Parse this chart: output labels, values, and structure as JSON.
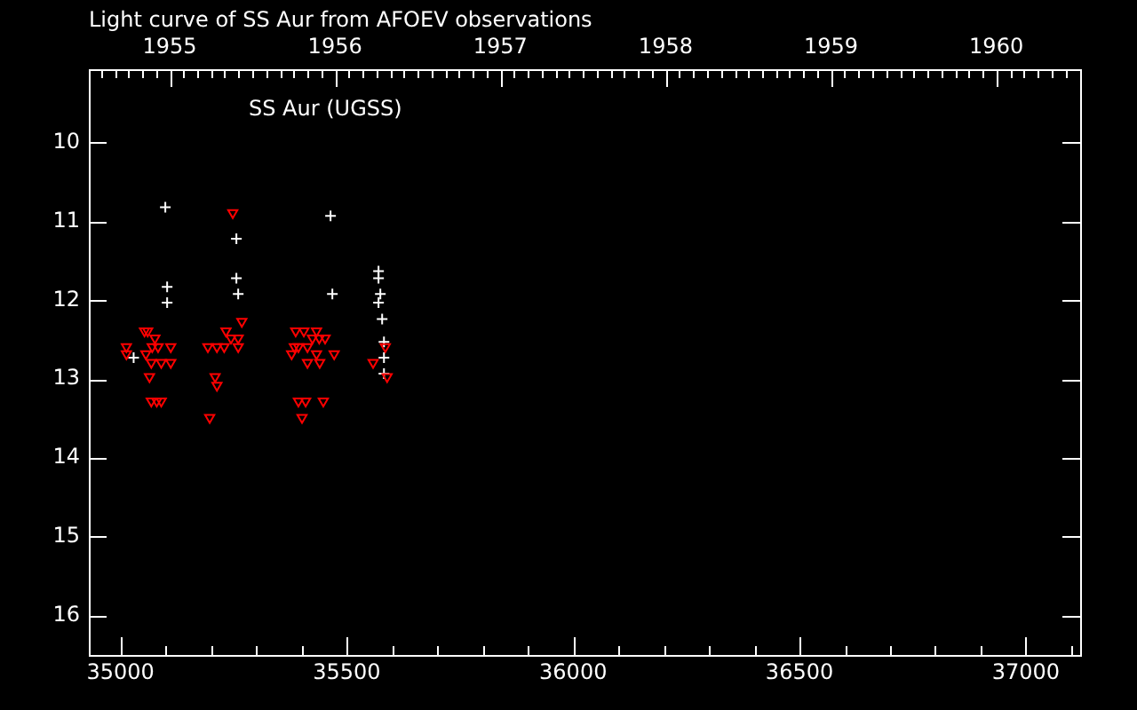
{
  "chart_data": {
    "type": "scatter",
    "title": "Light curve of SS Aur from AFOEV observations",
    "annotations": [
      "SS Aur (UGSS)"
    ],
    "xlim": [
      34930,
      37120
    ],
    "xticks": [
      35000,
      {
        "value": 35100,
        "label": null
      },
      {
        "value": 35200,
        "label": null
      },
      {
        "value": 35300,
        "label": null
      },
      {
        "value": 35400,
        "label": null
      },
      35500,
      {
        "value": 35600,
        "label": null
      },
      {
        "value": 35700,
        "label": null
      },
      {
        "value": 35800,
        "label": null
      },
      {
        "value": 35900,
        "label": null
      },
      36000,
      {
        "value": 36100,
        "label": null
      },
      {
        "value": 36200,
        "label": null
      },
      {
        "value": 36300,
        "label": null
      },
      {
        "value": 36400,
        "label": null
      },
      36500,
      {
        "value": 36600,
        "label": null
      },
      {
        "value": 36700,
        "label": null
      },
      {
        "value": 36800,
        "label": null
      },
      {
        "value": 36900,
        "label": null
      },
      37000,
      {
        "value": 37100,
        "label": null
      }
    ],
    "x2lim": [
      1954.511,
      1960.507
    ],
    "x2ticks": [
      {
        "value": 1954.583,
        "label": null
      },
      {
        "value": 1954.667,
        "label": null
      },
      {
        "value": 1954.75,
        "label": null
      },
      {
        "value": 1954.833,
        "label": null
      },
      {
        "value": 1954.917,
        "label": null
      },
      1955,
      {
        "value": 1955.083,
        "label": null
      },
      {
        "value": 1955.167,
        "label": null
      },
      {
        "value": 1955.25,
        "label": null
      },
      {
        "value": 1955.333,
        "label": null
      },
      {
        "value": 1955.417,
        "label": null
      },
      {
        "value": 1955.5,
        "label": null
      },
      {
        "value": 1955.583,
        "label": null
      },
      {
        "value": 1955.667,
        "label": null
      },
      {
        "value": 1955.75,
        "label": null
      },
      {
        "value": 1955.833,
        "label": null
      },
      {
        "value": 1955.917,
        "label": null
      },
      1956,
      {
        "value": 1956.083,
        "label": null
      },
      {
        "value": 1956.167,
        "label": null
      },
      {
        "value": 1956.25,
        "label": null
      },
      {
        "value": 1956.333,
        "label": null
      },
      {
        "value": 1956.417,
        "label": null
      },
      {
        "value": 1956.5,
        "label": null
      },
      {
        "value": 1956.583,
        "label": null
      },
      {
        "value": 1956.667,
        "label": null
      },
      {
        "value": 1956.75,
        "label": null
      },
      {
        "value": 1956.833,
        "label": null
      },
      {
        "value": 1956.917,
        "label": null
      },
      1957,
      {
        "value": 1957.083,
        "label": null
      },
      {
        "value": 1957.167,
        "label": null
      },
      {
        "value": 1957.25,
        "label": null
      },
      {
        "value": 1957.333,
        "label": null
      },
      {
        "value": 1957.417,
        "label": null
      },
      {
        "value": 1957.5,
        "label": null
      },
      {
        "value": 1957.583,
        "label": null
      },
      {
        "value": 1957.667,
        "label": null
      },
      {
        "value": 1957.75,
        "label": null
      },
      {
        "value": 1957.833,
        "label": null
      },
      {
        "value": 1957.917,
        "label": null
      },
      1958,
      {
        "value": 1958.083,
        "label": null
      },
      {
        "value": 1958.167,
        "label": null
      },
      {
        "value": 1958.25,
        "label": null
      },
      {
        "value": 1958.333,
        "label": null
      },
      {
        "value": 1958.417,
        "label": null
      },
      {
        "value": 1958.5,
        "label": null
      },
      {
        "value": 1958.583,
        "label": null
      },
      {
        "value": 1958.667,
        "label": null
      },
      {
        "value": 1958.75,
        "label": null
      },
      {
        "value": 1958.833,
        "label": null
      },
      {
        "value": 1958.917,
        "label": null
      },
      1959,
      {
        "value": 1959.083,
        "label": null
      },
      {
        "value": 1959.167,
        "label": null
      },
      {
        "value": 1959.25,
        "label": null
      },
      {
        "value": 1959.333,
        "label": null
      },
      {
        "value": 1959.417,
        "label": null
      },
      {
        "value": 1959.5,
        "label": null
      },
      {
        "value": 1959.583,
        "label": null
      },
      {
        "value": 1959.667,
        "label": null
      },
      {
        "value": 1959.75,
        "label": null
      },
      {
        "value": 1959.833,
        "label": null
      },
      {
        "value": 1959.917,
        "label": null
      },
      1960,
      {
        "value": 1960.083,
        "label": null
      },
      {
        "value": 1960.167,
        "label": null
      },
      {
        "value": 1960.25,
        "label": null
      },
      {
        "value": 1960.333,
        "label": null
      },
      {
        "value": 1960.417,
        "label": null
      }
    ],
    "ylim": [
      16.5,
      9.07
    ],
    "yticks": [
      10,
      11,
      12,
      13,
      14,
      15,
      16
    ],
    "series": [
      {
        "color": "#ff0000",
        "marker": "triangle",
        "x": [
          35053,
          35060,
          35076,
          35013,
          35070,
          35083,
          35111,
          35013,
          35056,
          35068,
          35090,
          35111,
          35064,
          35068,
          35080,
          35090,
          35248,
          35268,
          35233,
          35244,
          35260,
          35193,
          35213,
          35229,
          35260,
          35209,
          35213,
          35197,
          35387,
          35405,
          35433,
          35424,
          35439,
          35452,
          35384,
          35393,
          35413,
          35378,
          35433,
          35472,
          35413,
          35440,
          35393,
          35409,
          35448,
          35401,
          35558,
          35585,
          35589
        ],
        "values": [
          12.39,
          12.39,
          12.48,
          12.59,
          12.59,
          12.59,
          12.59,
          12.68,
          12.68,
          12.79,
          12.79,
          12.79,
          12.97,
          13.28,
          13.28,
          13.28,
          10.89,
          12.27,
          12.39,
          12.48,
          12.48,
          12.59,
          12.59,
          12.59,
          12.59,
          12.97,
          13.08,
          13.49,
          12.39,
          12.39,
          12.39,
          12.48,
          12.48,
          12.48,
          12.59,
          12.59,
          12.59,
          12.68,
          12.68,
          12.68,
          12.79,
          12.79,
          13.28,
          13.28,
          13.28,
          13.49,
          12.79,
          12.59,
          12.97
        ]
      },
      {
        "color": "#ffffff",
        "marker": "cross",
        "x": [
          35099,
          35103,
          35103,
          35029,
          35256,
          35256,
          35260,
          35464,
          35468,
          35570,
          35570,
          35574,
          35570,
          35578,
          35582,
          35582,
          35582
        ],
        "values": [
          10.82,
          11.83,
          12.03,
          12.73,
          11.22,
          11.72,
          11.92,
          10.93,
          11.92,
          11.63,
          11.72,
          11.92,
          12.03,
          12.24,
          12.53,
          12.73,
          12.93
        ]
      }
    ]
  }
}
